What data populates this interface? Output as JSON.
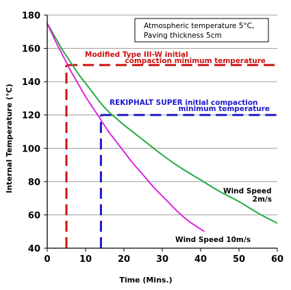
{
  "chart_data": {
    "type": "line",
    "xlabel": "Time (Mins.)",
    "ylabel": "Internal Temperature (°C)",
    "xlim": [
      0,
      60
    ],
    "ylim": [
      40,
      180
    ],
    "xticks": [
      "0",
      "10",
      "20",
      "30",
      "40",
      "50",
      "60"
    ],
    "yticks": [
      "40",
      "60",
      "80",
      "100",
      "120",
      "140",
      "160",
      "180"
    ],
    "grid": "horizontal",
    "conditions": [
      "Atmospheric temperature 5°C,",
      "Paving thickness 5cm"
    ],
    "series": [
      {
        "name": "Wind Speed 2m/s",
        "label_lines": [
          "Wind Speed",
          "2m/s"
        ],
        "color": "#22aa44",
        "x": [
          0,
          2,
          4,
          6,
          8,
          10,
          12,
          14,
          16,
          18,
          20,
          25,
          30,
          35,
          40,
          45,
          50,
          55,
          60
        ],
        "y": [
          175,
          167,
          159,
          152,
          145,
          139,
          133,
          127,
          122,
          118,
          114,
          105,
          96,
          88,
          81,
          74,
          68,
          61,
          55
        ]
      },
      {
        "name": "Wind Speed 10m/s",
        "label_lines": [
          "Wind Speed 10m/s"
        ],
        "color": "#dd22dd",
        "x": [
          0,
          2,
          4,
          6,
          8,
          10,
          12,
          14,
          16,
          18,
          20,
          22,
          25,
          28,
          31,
          34,
          37,
          41
        ],
        "y": [
          175,
          165,
          156,
          147,
          139,
          131,
          124,
          117,
          110,
          104,
          98,
          92,
          84,
          76,
          69,
          62,
          56,
          50
        ]
      }
    ],
    "reference_lines": [
      {
        "label_lines": [
          "Modified Type III-W initial",
          "compaction minimum temperature"
        ],
        "color": "#cc1111",
        "temperature": 150,
        "time": 5
      },
      {
        "label_lines": [
          "REKIPHALT SUPER initial compaction",
          "minimum temperature"
        ],
        "color": "#1a1acc",
        "temperature": 120,
        "time": 14
      }
    ]
  }
}
